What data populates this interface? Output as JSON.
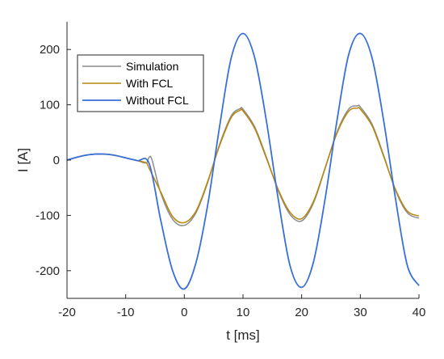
{
  "chart_data": {
    "type": "line",
    "xlabel": "t [ms]",
    "ylabel": "I [A]",
    "xlim": [
      -20,
      40
    ],
    "ylim": [
      -250,
      250
    ],
    "xticks": [
      -20,
      -10,
      0,
      10,
      20,
      30,
      40
    ],
    "yticks": [
      -200,
      -100,
      0,
      100,
      200
    ],
    "grid": false,
    "legend_position": "top-left",
    "colors": {
      "simulation": "#8c8c8c",
      "with_fcl": "#b8860b",
      "without_fcl": "#3a6fd8"
    },
    "series": [
      {
        "name": "Simulation",
        "x": [
          -20,
          -18,
          -16,
          -14,
          -12,
          -10,
          -8,
          -6.5,
          -6,
          -5.5,
          -4,
          -2,
          0,
          2,
          4,
          6,
          8,
          9.5,
          10,
          12,
          14,
          16,
          18,
          20,
          22,
          24,
          26,
          28,
          29.5,
          30,
          32,
          34,
          36,
          38,
          40
        ],
        "y": [
          0,
          6,
          10,
          11,
          9,
          4,
          -1,
          -5,
          5,
          0,
          -60,
          -107,
          -118,
          -95,
          -40,
          28,
          80,
          93,
          92,
          60,
          5,
          -55,
          -98,
          -110,
          -78,
          -15,
          50,
          92,
          98,
          96,
          65,
          8,
          -55,
          -95,
          -105
        ]
      },
      {
        "name": "With FCL",
        "x": [
          -20,
          -18,
          -16,
          -14,
          -12,
          -10,
          -8,
          -6.5,
          -6,
          -4,
          -2,
          0,
          2,
          4,
          6,
          8,
          9.5,
          10,
          12,
          14,
          16,
          18,
          20,
          22,
          24,
          26,
          28,
          29.5,
          30,
          32,
          34,
          36,
          38,
          40
        ],
        "y": [
          0,
          6,
          10,
          11,
          9,
          4,
          -1,
          -5,
          -15,
          -58,
          -102,
          -113,
          -92,
          -38,
          26,
          77,
          90,
          89,
          57,
          3,
          -53,
          -94,
          -106,
          -75,
          -14,
          48,
          88,
          94,
          92,
          62,
          6,
          -53,
          -92,
          -101
        ]
      },
      {
        "name": "Without FCL",
        "x": [
          -20,
          -18,
          -16,
          -14,
          -12,
          -10,
          -8,
          -6,
          -4,
          -2,
          0,
          2,
          4,
          6,
          8,
          10,
          12,
          14,
          16,
          18,
          20,
          22,
          24,
          26,
          28,
          30,
          32,
          34,
          36,
          38,
          40
        ],
        "y": [
          0,
          6,
          10,
          11,
          9,
          4,
          -1,
          -6,
          -110,
          -200,
          -233,
          -185,
          -80,
          60,
          185,
          229,
          185,
          70,
          -70,
          -190,
          -230,
          -185,
          -70,
          70,
          190,
          229,
          185,
          70,
          -70,
          -190,
          -227
        ]
      }
    ]
  }
}
